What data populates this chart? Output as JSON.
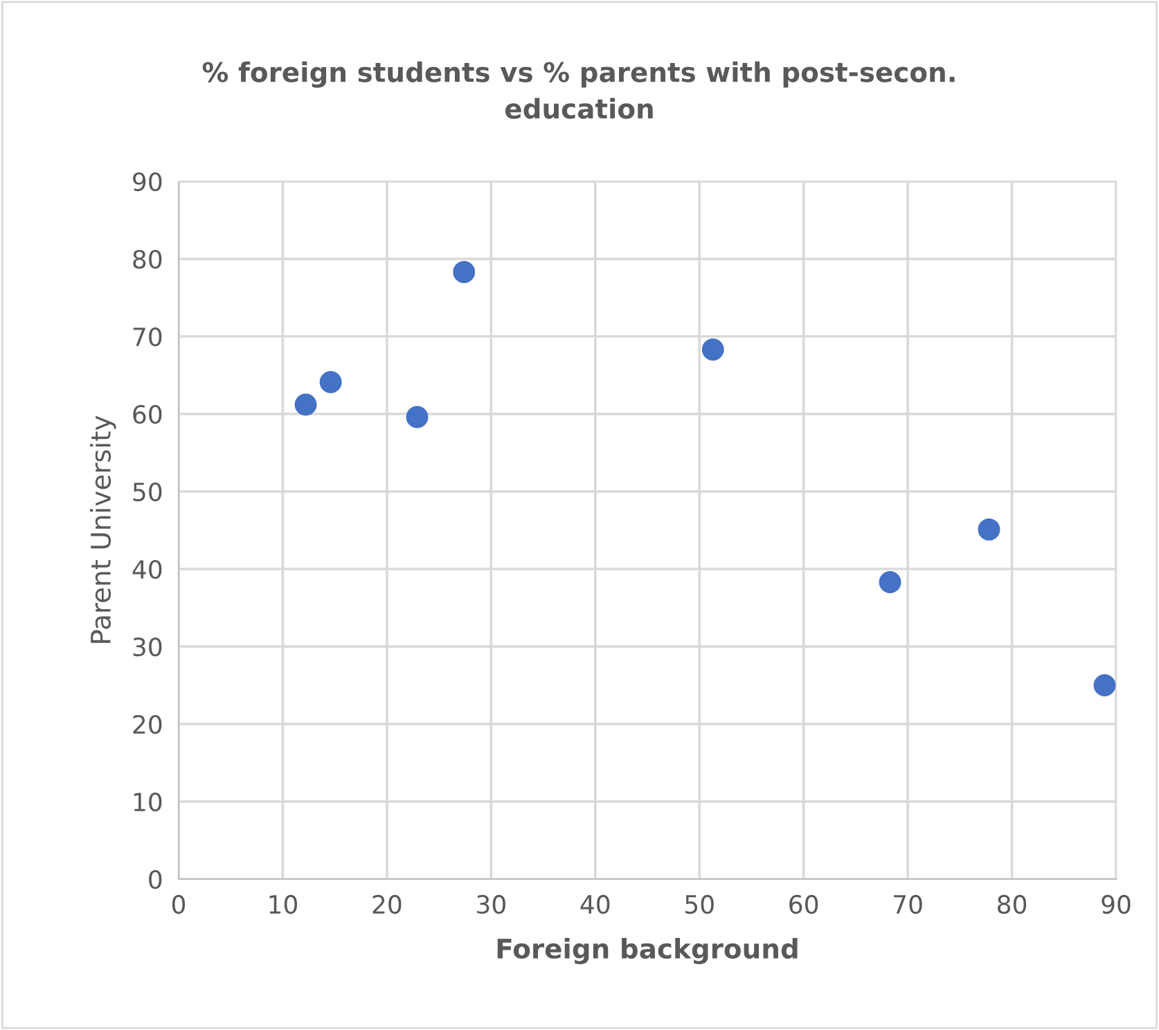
{
  "chart_data": {
    "type": "scatter",
    "title": "% foreign students vs % parents with post-secon.\neducation",
    "xlabel": "Foreign background",
    "ylabel": "Parent University",
    "series": [
      {
        "color": "#4472c4",
        "x": [
          12.2,
          14.6,
          22.9,
          27.4,
          51.3,
          68.3,
          77.8,
          88.9
        ],
        "values": [
          61.2,
          64.1,
          59.6,
          78.3,
          68.3,
          38.3,
          45.1,
          25.0
        ]
      }
    ],
    "xlim": [
      0,
      90
    ],
    "xticks": [
      0,
      10,
      20,
      30,
      40,
      50,
      60,
      70,
      80,
      90
    ],
    "ylim": [
      0,
      90
    ],
    "yticks": [
      0,
      10,
      20,
      30,
      40,
      50,
      60,
      70,
      80,
      90
    ],
    "grid": true,
    "marker": "circle"
  }
}
